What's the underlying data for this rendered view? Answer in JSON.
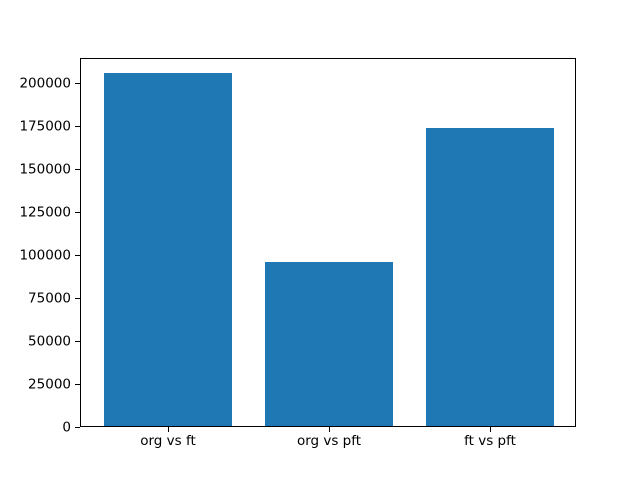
{
  "chart_data": {
    "type": "bar",
    "categories": [
      "org vs ft",
      "org vs pft",
      "ft vs pft"
    ],
    "values": [
      204800,
      95200,
      173200
    ],
    "title": "",
    "xlabel": "",
    "ylabel": "",
    "ylim": [
      0,
      214200
    ],
    "yticks": [
      0,
      25000,
      50000,
      75000,
      100000,
      125000,
      150000,
      175000,
      200000
    ],
    "bar_color": "#1f77b4",
    "axis_color": "#000000",
    "background_color": "#ffffff",
    "grid": false,
    "legend": null,
    "bar_width_fraction": 0.8,
    "xlim": [
      -0.54,
      2.54
    ]
  }
}
